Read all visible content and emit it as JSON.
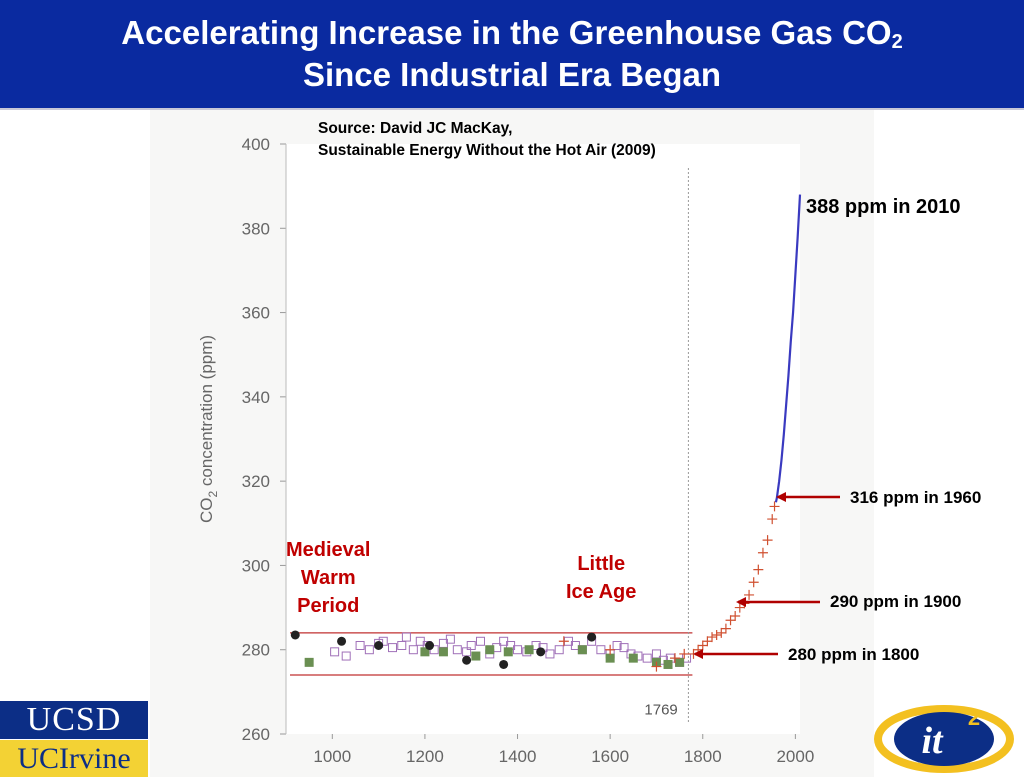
{
  "header": {
    "title_line1_main": "Accelerating Increase in the Greenhouse Gas CO",
    "title_line1_sub": "2",
    "title_line2": "Since Industrial Era Began"
  },
  "source": {
    "line1": "Source: David JC MacKay,",
    "line2": "Sustainable Energy Without the Hot Air (2009)"
  },
  "annotations": {
    "ppm_2010": "388 ppm in 2010",
    "ppm_1960": "316 ppm in 1960",
    "ppm_1900": "290 ppm in 1900",
    "ppm_1800": "280 ppm in 1800",
    "medieval_line1": "Medieval",
    "medieval_line2": "Warm",
    "medieval_line3": "Period",
    "littleice_line1": "Little",
    "littleice_line2": "Ice Age",
    "marker_1769": "1769"
  },
  "colors": {
    "title_bar": "#0a2aa0",
    "annotation_red": "#c00000",
    "arrow_red": "#b00000",
    "ucsd_blue": "#0c2e86",
    "ucirvine_gold": "#f3d234"
  },
  "logos": {
    "ucsd": "UCSD",
    "ucirvine": "UCIrvine",
    "it2_main": "it",
    "it2_sup": "2"
  },
  "chart_data": {
    "type": "scatter",
    "title": "",
    "xlabel": "",
    "ylabel_main": "CO",
    "ylabel_sub": "2",
    "ylabel_rest": " concentration (ppm)",
    "xlim": [
      900,
      2010
    ],
    "ylim": [
      260,
      400
    ],
    "x_ticks": [
      1000,
      1200,
      1400,
      1600,
      1800,
      2000
    ],
    "y_ticks": [
      260,
      280,
      300,
      320,
      340,
      360,
      380,
      400
    ],
    "vertical_marker_x": 1769,
    "band": [
      274,
      284
    ],
    "series": [
      {
        "marker": "open-square",
        "color": "#a070b8",
        "x": [
          1005,
          1030,
          1060,
          1080,
          1100,
          1110,
          1130,
          1150,
          1160,
          1175,
          1190,
          1205,
          1220,
          1240,
          1255,
          1270,
          1290,
          1300,
          1320,
          1340,
          1355,
          1370,
          1385,
          1400,
          1420,
          1440,
          1455,
          1470,
          1490,
          1510,
          1525,
          1540,
          1560,
          1580,
          1600,
          1615,
          1630,
          1645,
          1660,
          1680,
          1700,
          1715,
          1730,
          1750,
          1765
        ],
        "y": [
          279.5,
          278.5,
          281,
          280,
          281.5,
          282,
          280.5,
          281,
          283,
          280,
          282,
          281,
          280,
          281.5,
          282.5,
          280,
          279.5,
          281,
          282,
          279,
          280.5,
          282,
          281,
          280,
          279.5,
          281,
          280.5,
          279,
          280,
          282,
          281,
          280,
          282,
          280,
          279,
          281,
          280.5,
          279,
          278.5,
          278,
          279,
          277.5,
          278,
          277,
          278
        ]
      },
      {
        "marker": "filled-square",
        "color": "#6a8f52",
        "x": [
          950,
          1200,
          1240,
          1310,
          1340,
          1380,
          1425,
          1540,
          1600,
          1650,
          1700,
          1725,
          1750
        ],
        "y": [
          277,
          279.5,
          279.5,
          278.5,
          280,
          279.5,
          280,
          280,
          278,
          278,
          277,
          276.5,
          277
        ]
      },
      {
        "marker": "filled-circle",
        "color": "#222222",
        "x": [
          920,
          1020,
          1100,
          1210,
          1290,
          1370,
          1450,
          1560
        ],
        "y": [
          283.5,
          282,
          281,
          281,
          277.5,
          276.5,
          279.5,
          283
        ]
      },
      {
        "marker": "plus",
        "color": "#d05030",
        "x": [
          1500,
          1600,
          1700,
          1740,
          1760,
          1780,
          1790,
          1800,
          1810,
          1820,
          1830,
          1840,
          1850,
          1860,
          1870,
          1880,
          1890,
          1900,
          1910,
          1920,
          1930,
          1940,
          1950,
          1955
        ],
        "y": [
          282,
          280,
          276,
          278,
          279,
          279,
          280,
          281,
          282,
          283,
          283.5,
          284,
          285,
          287,
          288,
          290,
          291,
          293,
          296,
          299,
          303,
          306,
          311,
          314
        ]
      },
      {
        "marker": "line",
        "color": "#3a3ac0",
        "x": [
          1958,
          1960,
          1965,
          1970,
          1975,
          1980,
          1985,
          1990,
          1995,
          2000,
          2005,
          2010
        ],
        "y": [
          315,
          316,
          320,
          325,
          331,
          338,
          345,
          353,
          360,
          369,
          378,
          388
        ]
      }
    ]
  }
}
